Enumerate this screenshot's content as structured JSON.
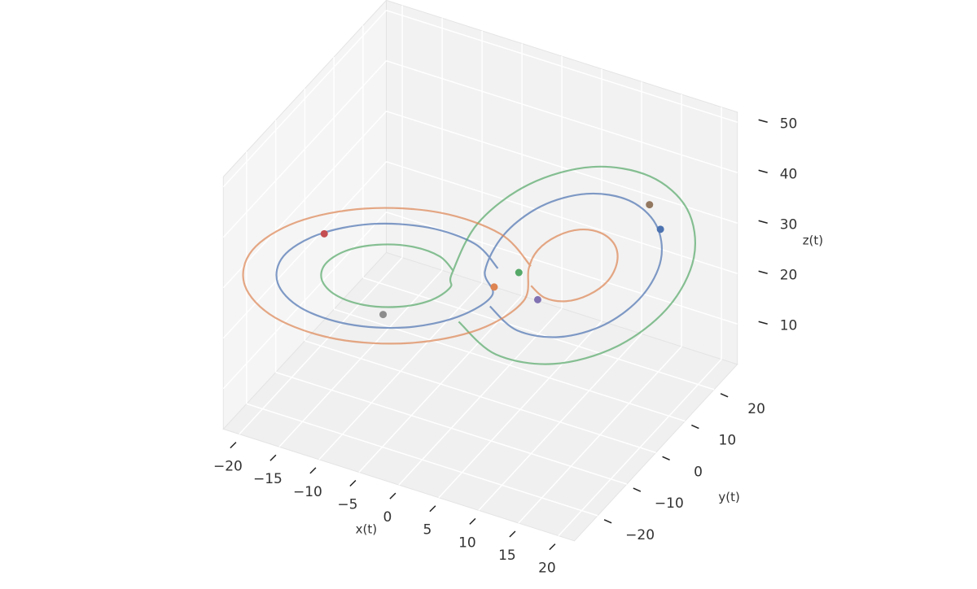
{
  "chart_data": {
    "type": "line3d",
    "xlabel": "x(t)",
    "ylabel": "y(t)",
    "zlabel": "z(t)",
    "xlim": [
      -22,
      22
    ],
    "ylim": [
      -28,
      28
    ],
    "zlim": [
      2,
      52
    ],
    "xticks": [
      {
        "value": -20,
        "label": "−20"
      },
      {
        "value": -15,
        "label": "−15"
      },
      {
        "value": -10,
        "label": "−10"
      },
      {
        "value": -5,
        "label": "−5"
      },
      0,
      5,
      10,
      15,
      20
    ],
    "yticks": [
      {
        "value": -20,
        "label": "−20"
      },
      {
        "value": -10,
        "label": "−10"
      },
      0,
      10,
      20
    ],
    "zticks": [
      10,
      20,
      30,
      40,
      50
    ],
    "grid": true,
    "series": [
      {
        "color": "#4c72b0",
        "x": [
          1.5,
          0.2,
          -3.5,
          -8.5,
          -13.5,
          -17.2,
          -18.5,
          -17.2,
          -13.5,
          -8.5,
          -3.5,
          0.2,
          0.5,
          1.6,
          4.5,
          8.5,
          12.5,
          15.4,
          16.5,
          15.4,
          12.5,
          8.5,
          4.5,
          1.6
        ],
        "y": [
          1.9,
          -2.5,
          -8.5,
          -14.5,
          -18.9,
          -20.5,
          -18.9,
          -14.5,
          -8.5,
          -2.5,
          1.9,
          3.5,
          0.2,
          3.7,
          8.5,
          13.3,
          16.8,
          18.1,
          16.8,
          13.3,
          8.5,
          3.7,
          0.2,
          -1.1
        ],
        "z": [
          27,
          34,
          39.1,
          41,
          39.1,
          34,
          27,
          20,
          14.9,
          13,
          14.9,
          20,
          27,
          32.6,
          36.7,
          38.2,
          36.7,
          32.6,
          27,
          21.4,
          17.3,
          15.8,
          17.3,
          21.4
        ]
      },
      {
        "color": "#55a868",
        "x": [
          -2.5,
          -3.3,
          -5.5,
          -8.5,
          -11.5,
          -13.7,
          -14.5,
          -13.7,
          -11.5,
          -8.5,
          -5.5,
          -3.3,
          -2.5,
          -1,
          3,
          8.5,
          14,
          18,
          19.5,
          18,
          14,
          8.5,
          3,
          -1
        ],
        "y": [
          -2.3,
          -4.9,
          -8.5,
          -12.1,
          -14.7,
          -15.7,
          -14.7,
          -12.1,
          -8.5,
          -4.9,
          -2.3,
          -1.3,
          -2.9,
          1.9,
          8.5,
          15.1,
          19.9,
          21.7,
          19.9,
          15.1,
          8.5,
          1.9,
          -2.9,
          -4.7
        ],
        "z": [
          27,
          31.2,
          34.3,
          35.4,
          34.3,
          31.2,
          27,
          22.8,
          19.7,
          18.6,
          19.7,
          22.8,
          27,
          34.7,
          40.3,
          42.4,
          40.3,
          34.7,
          27,
          19.3,
          13.7,
          11.6,
          13.7,
          19.3
        ]
      },
      {
        "color": "#dd8452",
        "x": [
          4.5,
          2.8,
          -2,
          -8.5,
          -15,
          -19.8,
          -21.5,
          -19.8,
          -15,
          -8.5,
          -2,
          2.8,
          4.5,
          5,
          6.5,
          8.5,
          10.5,
          12,
          12.5,
          12,
          10.5,
          8.5,
          6.5,
          5
        ],
        "y": [
          5,
          -0.7,
          -8.5,
          -16.3,
          -22,
          -24.1,
          -22,
          -16.3,
          -8.5,
          -0.7,
          5,
          7.1,
          4.3,
          6.1,
          8.5,
          10.9,
          12.7,
          13.3,
          12.7,
          10.9,
          8.5,
          6.1,
          4.3,
          3.7
        ],
        "z": [
          27,
          36.1,
          42.8,
          45.2,
          42.8,
          36.1,
          27,
          17.9,
          11.2,
          8.8,
          11.2,
          17.9,
          27,
          29.8,
          31.8,
          32.6,
          31.8,
          29.8,
          27,
          24.2,
          22.2,
          21.4,
          22.2,
          24.2
        ]
      }
    ],
    "markers": [
      {
        "color": "#c44e52",
        "x": -13,
        "y": -18,
        "z": 39
      },
      {
        "color": "#937860",
        "x": 15,
        "y": 17,
        "z": 37
      },
      {
        "color": "#4c72b0",
        "x": 16,
        "y": 18,
        "z": 32
      },
      {
        "color": "#55a868",
        "x": 3,
        "y": 5,
        "z": 25
      },
      {
        "color": "#dd8452",
        "x": 1,
        "y": 2,
        "z": 23
      },
      {
        "color": "#8172b3",
        "x": 5,
        "y": 6,
        "z": 20
      },
      {
        "color": "#8c8c8c",
        "x": -10,
        "y": -6,
        "z": 17
      }
    ]
  }
}
